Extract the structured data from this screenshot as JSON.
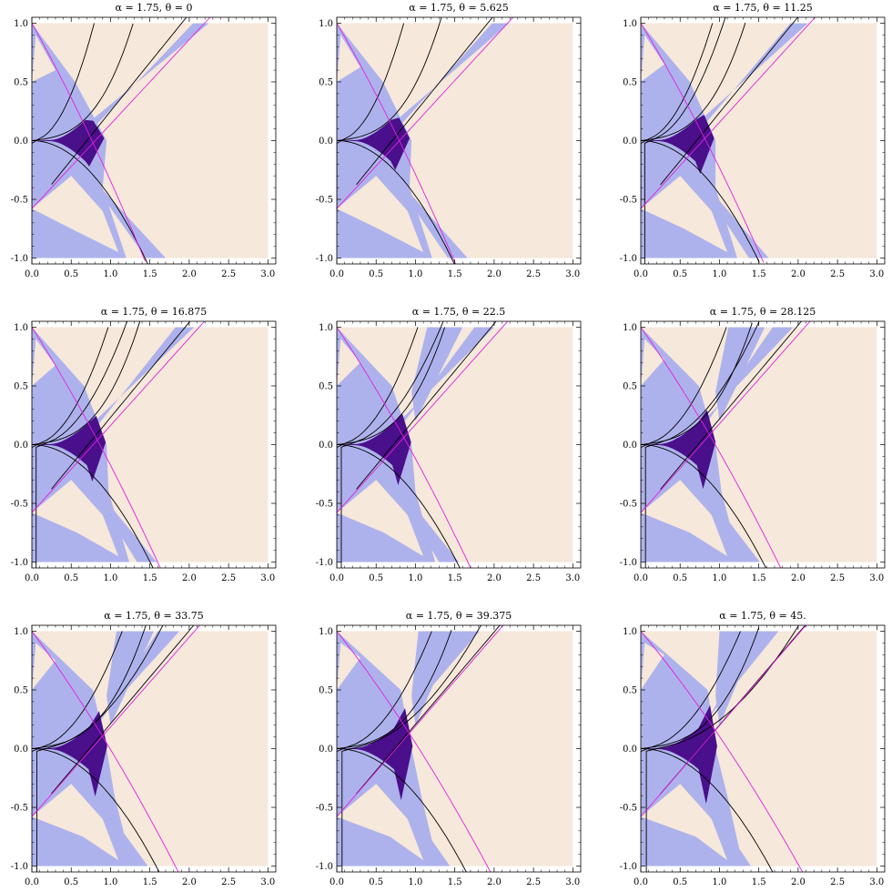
{
  "colors": {
    "background_region": "#f6e8da",
    "light_region": "#aeb2ec",
    "dark_region": "#4a0f8a",
    "magenta_curve": "#e020e0",
    "black_curve": "#000000",
    "frame": "#000000"
  },
  "chart_data": [
    {
      "type": "heatmap",
      "title": "α = 1.75, θ = 0",
      "alpha": 1.75,
      "theta": 0,
      "xlim": [
        0,
        3.1
      ],
      "ylim": [
        -1.05,
        1.05
      ],
      "xticks": [
        "0.0",
        "0.5",
        "1.0",
        "1.5",
        "2.0",
        "2.5",
        "3.0"
      ],
      "yticks": [
        "-1.0",
        "-0.5",
        "0.0",
        "0.5",
        "1.0"
      ]
    },
    {
      "type": "heatmap",
      "title": "α = 1.75, θ = 5.625",
      "alpha": 1.75,
      "theta": 5.625,
      "xlim": [
        0,
        3.1
      ],
      "ylim": [
        -1.05,
        1.05
      ],
      "xticks": [
        "0.0",
        "0.5",
        "1.0",
        "1.5",
        "2.0",
        "2.5",
        "3.0"
      ],
      "yticks": [
        "-1.0",
        "-0.5",
        "0.0",
        "0.5",
        "1.0"
      ]
    },
    {
      "type": "heatmap",
      "title": "α = 1.75, θ = 11.25",
      "alpha": 1.75,
      "theta": 11.25,
      "xlim": [
        0,
        3.1
      ],
      "ylim": [
        -1.05,
        1.05
      ],
      "xticks": [
        "0.0",
        "0.5",
        "1.0",
        "1.5",
        "2.0",
        "2.5",
        "3.0"
      ],
      "yticks": [
        "-1.0",
        "-0.5",
        "0.0",
        "0.5",
        "1.0"
      ]
    },
    {
      "type": "heatmap",
      "title": "α = 1.75, θ = 16.875",
      "alpha": 1.75,
      "theta": 16.875,
      "xlim": [
        0,
        3.1
      ],
      "ylim": [
        -1.05,
        1.05
      ],
      "xticks": [
        "0.0",
        "0.5",
        "1.0",
        "1.5",
        "2.0",
        "2.5",
        "3.0"
      ],
      "yticks": [
        "-1.0",
        "-0.5",
        "0.0",
        "0.5",
        "1.0"
      ]
    },
    {
      "type": "heatmap",
      "title": "α = 1.75, θ = 22.5",
      "alpha": 1.75,
      "theta": 22.5,
      "xlim": [
        0,
        3.1
      ],
      "ylim": [
        -1.05,
        1.05
      ],
      "xticks": [
        "0.0",
        "0.5",
        "1.0",
        "1.5",
        "2.0",
        "2.5",
        "3.0"
      ],
      "yticks": [
        "-1.0",
        "-0.5",
        "0.0",
        "0.5",
        "1.0"
      ]
    },
    {
      "type": "heatmap",
      "title": "α = 1.75, θ = 28.125",
      "alpha": 1.75,
      "theta": 28.125,
      "xlim": [
        0,
        3.1
      ],
      "ylim": [
        -1.05,
        1.05
      ],
      "xticks": [
        "0.0",
        "0.5",
        "1.0",
        "1.5",
        "2.0",
        "2.5",
        "3.0"
      ],
      "yticks": [
        "-1.0",
        "-0.5",
        "0.0",
        "0.5",
        "1.0"
      ]
    },
    {
      "type": "heatmap",
      "title": "α = 1.75, θ = 33.75",
      "alpha": 1.75,
      "theta": 33.75,
      "xlim": [
        0,
        3.1
      ],
      "ylim": [
        -1.05,
        1.05
      ],
      "xticks": [
        "0.0",
        "0.5",
        "1.0",
        "1.5",
        "2.0",
        "2.5",
        "3.0"
      ],
      "yticks": [
        "-1.0",
        "-0.5",
        "0.0",
        "0.5",
        "1.0"
      ]
    },
    {
      "type": "heatmap",
      "title": "α = 1.75, θ = 39.375",
      "alpha": 1.75,
      "theta": 39.375,
      "xlim": [
        0,
        3.1
      ],
      "ylim": [
        -1.05,
        1.05
      ],
      "xticks": [
        "0.0",
        "0.5",
        "1.0",
        "1.5",
        "2.0",
        "2.5",
        "3.0"
      ],
      "yticks": [
        "-1.0",
        "-0.5",
        "0.0",
        "0.5",
        "1.0"
      ]
    },
    {
      "type": "heatmap",
      "title": "α = 1.75, θ = 45.",
      "alpha": 1.75,
      "theta": 45,
      "xlim": [
        0,
        3.1
      ],
      "ylim": [
        -1.05,
        1.05
      ],
      "xticks": [
        "0.0",
        "0.5",
        "1.0",
        "1.5",
        "2.0",
        "2.5",
        "3.0"
      ],
      "yticks": [
        "-1.0",
        "-0.5",
        "0.0",
        "0.5",
        "1.0"
      ]
    }
  ]
}
